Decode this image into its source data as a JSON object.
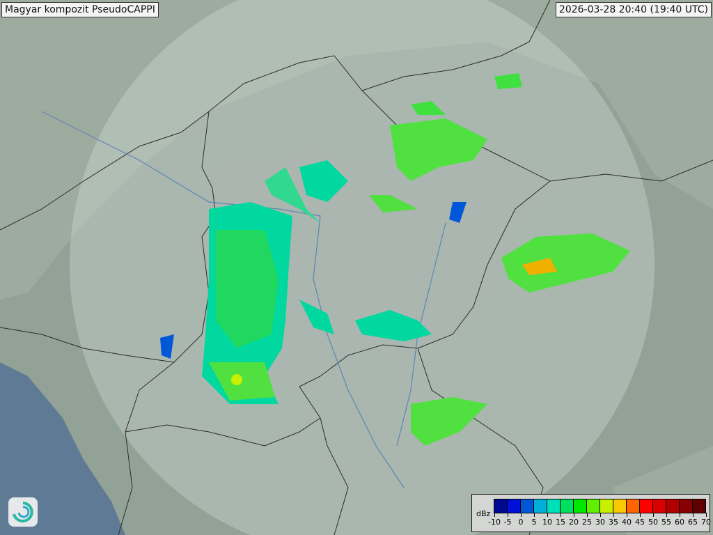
{
  "title_left": "Magyar kompozit  PseudoCAPPI",
  "title_right": "2026-03-28 20:40 (19:40 UTC)",
  "logo_icon": "swirl-logo-icon",
  "legend": {
    "unit": "dBz",
    "ticks": [
      "-10",
      "-5",
      "0",
      "5",
      "10",
      "15",
      "20",
      "25",
      "30",
      "35",
      "40",
      "45",
      "50",
      "55",
      "60",
      "65",
      "70"
    ],
    "colors": [
      "#000a90",
      "#0010d8",
      "#0058d8",
      "#00b0d8",
      "#00e0b8",
      "#00e060",
      "#00e800",
      "#60f000",
      "#c8f000",
      "#f8c800",
      "#ff6400",
      "#ff0000",
      "#d80000",
      "#b00000",
      "#880000",
      "#600000"
    ]
  }
}
